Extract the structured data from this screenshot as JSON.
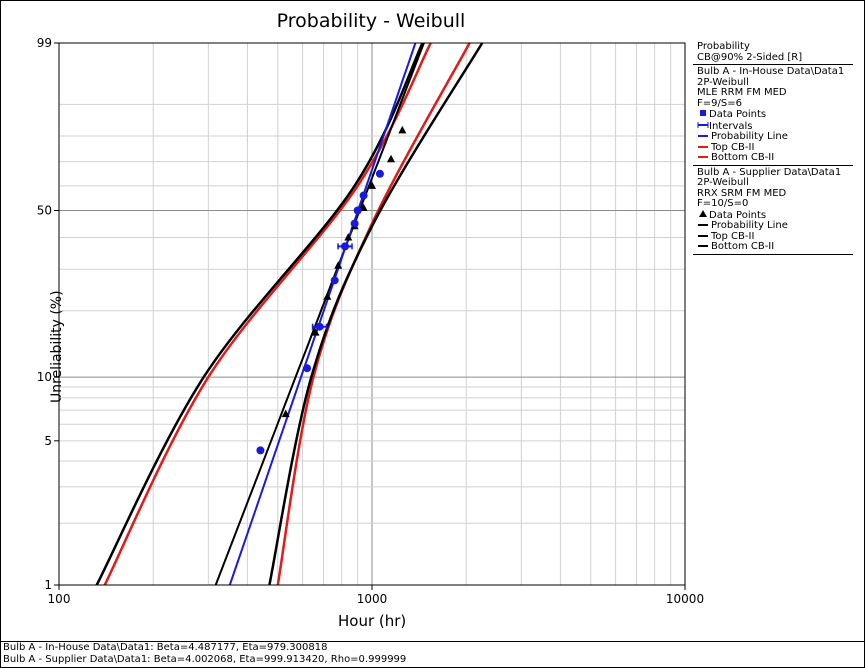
{
  "chart_data": {
    "type": "scatter",
    "title": "Probability - Weibull",
    "xlabel": "Hour (hr)",
    "ylabel": "Unreliability (%)",
    "xscale": "log",
    "yscale": "weibull",
    "xlim": [
      100,
      10000
    ],
    "ylim": [
      1,
      99
    ],
    "x_ticks": [
      "100",
      "1000",
      "10000"
    ],
    "y_ticks": [
      "1",
      "5",
      "10",
      "50",
      "99"
    ],
    "grid": true,
    "legend_position": "right",
    "series": [
      {
        "name": "Bulb A - In-House Data\\Data1",
        "model": "2P-Weibull",
        "beta": 4.487177,
        "eta": 979.300818,
        "points": [
          [
            440,
            4.5
          ],
          [
            620,
            11
          ],
          [
            680,
            17
          ],
          [
            760,
            27
          ],
          [
            820,
            37
          ],
          [
            880,
            45
          ],
          [
            900,
            50
          ],
          [
            940,
            56
          ],
          [
            1060,
            65
          ]
        ],
        "interval_points": [
          [
            680,
            17
          ],
          [
            820,
            37
          ]
        ],
        "color": "#1a1adc"
      },
      {
        "name": "Bulb A - Supplier Data\\Data1",
        "model": "2P-Weibull",
        "beta": 4.002068,
        "eta": 999.91342,
        "points": [
          [
            530,
            6.7
          ],
          [
            660,
            16
          ],
          [
            720,
            23
          ],
          [
            780,
            31
          ],
          [
            840,
            40
          ],
          [
            880,
            44
          ],
          [
            940,
            51
          ],
          [
            1000,
            60
          ],
          [
            1150,
            71
          ],
          [
            1250,
            82
          ]
        ],
        "color": "#000000"
      }
    ],
    "confidence_bounds": {
      "in_house": {
        "top": [
          [
            140,
            1
          ],
          [
            300,
            10
          ],
          [
            900,
            60
          ],
          [
            1540,
            99
          ]
        ],
        "bottom": [
          [
            500,
            1
          ],
          [
            650,
            10
          ],
          [
            1000,
            45
          ],
          [
            2050,
            99
          ]
        ],
        "color": "#e21a1a"
      },
      "supplier": {
        "top": [
          [
            132,
            1
          ],
          [
            290,
            10
          ],
          [
            880,
            60
          ],
          [
            1450,
            99
          ]
        ],
        "bottom": [
          [
            470,
            1
          ],
          [
            640,
            10
          ],
          [
            1010,
            45
          ],
          [
            2250,
            99
          ]
        ],
        "color": "#000000"
      }
    }
  },
  "legend": {
    "header": [
      "Probability",
      "CB@90% 2-Sided [R]"
    ],
    "group1": {
      "lines": [
        "Bulb A - In-House Data\\Data1",
        "2P-Weibull",
        "MLE RRM FM MED",
        "F=9/S=6"
      ],
      "items": [
        {
          "label": "Data Points",
          "color": "#1a1adc",
          "marker": "square-icon"
        },
        {
          "label": "Intervals",
          "color": "#1a1adc",
          "marker": "interval-icon"
        },
        {
          "label": "Probability Line",
          "color": "#1a1adc",
          "marker": "line"
        },
        {
          "label": "Top CB-II",
          "color": "#e21a1a",
          "marker": "line"
        },
        {
          "label": "Bottom CB-II",
          "color": "#e21a1a",
          "marker": "line"
        }
      ]
    },
    "group2": {
      "lines": [
        "Bulb A - Supplier Data\\Data1",
        "2P-Weibull",
        "RRX SRM FM MED",
        "F=10/S=0"
      ],
      "items": [
        {
          "label": "Data Points",
          "color": "#000000",
          "marker": "triangle-icon"
        },
        {
          "label": "Probability Line",
          "color": "#000000",
          "marker": "line"
        },
        {
          "label": "Top CB-II",
          "color": "#000000",
          "marker": "line"
        },
        {
          "label": "Bottom CB-II",
          "color": "#000000",
          "marker": "line"
        }
      ]
    }
  },
  "footer": {
    "line1": "Bulb A - In-House Data\\Data1: Beta=4.487177, Eta=979.300818",
    "line2": "Bulb A - Supplier Data\\Data1: Beta=4.002068, Eta=999.913420, Rho=0.999999"
  }
}
